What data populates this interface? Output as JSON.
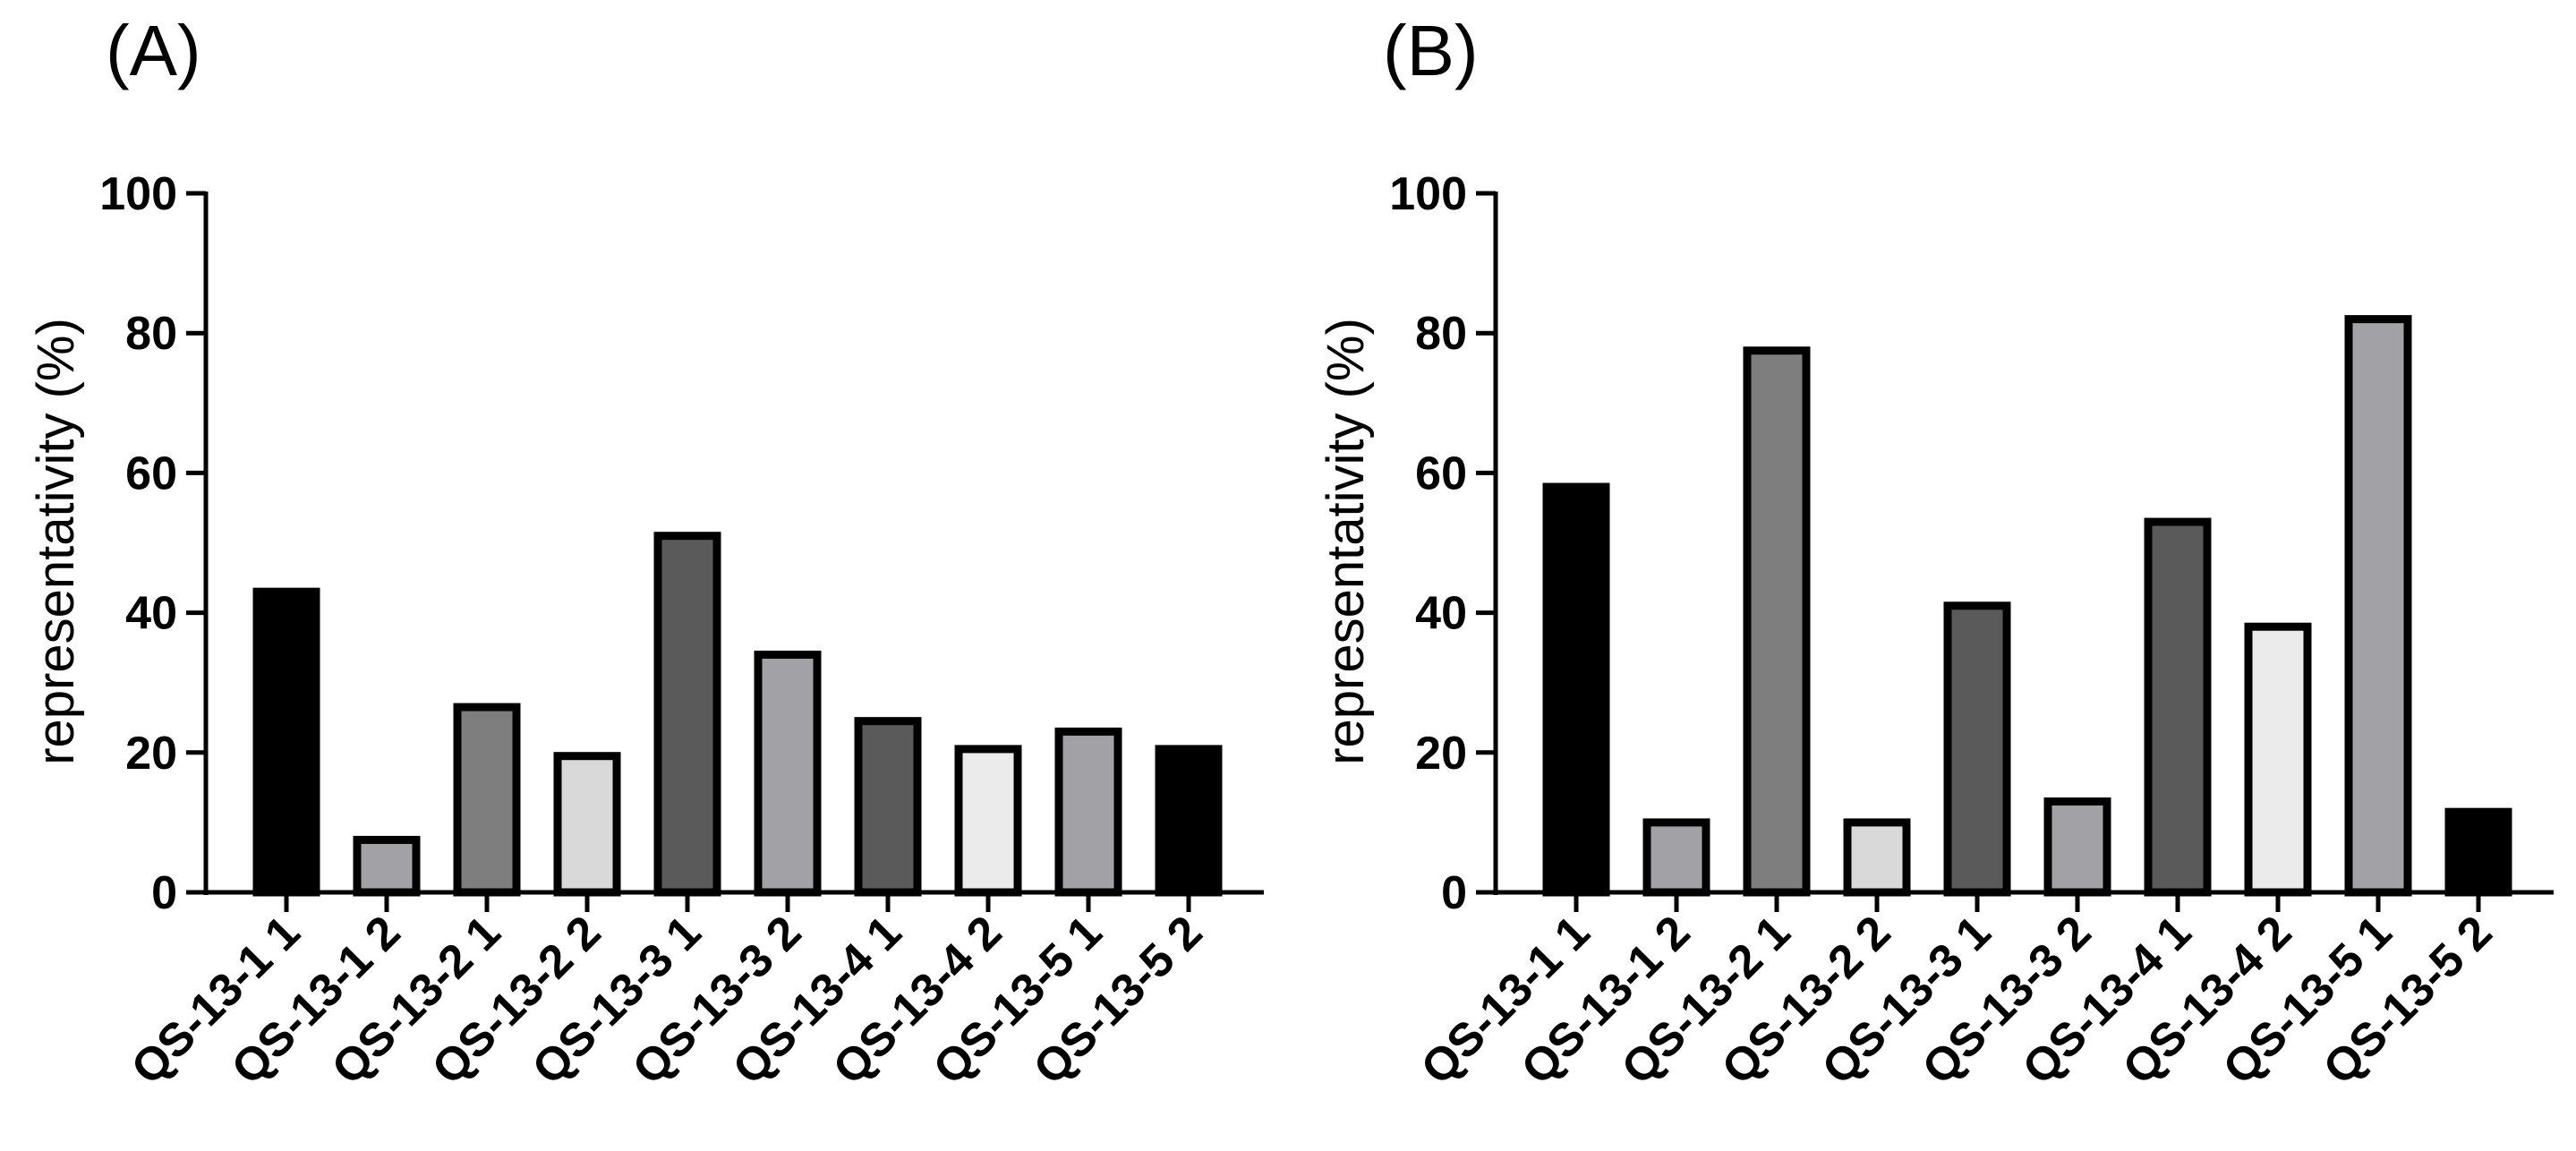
{
  "chart_data": [
    {
      "type": "bar",
      "panel_label": "(A)",
      "title": "",
      "xlabel": "",
      "ylabel": "representativity (%)",
      "ylim": [
        0,
        100
      ],
      "yticks": [
        0,
        20,
        40,
        60,
        80,
        100
      ],
      "grid": false,
      "categories": [
        "QS-13-1 1",
        "QS-13-1 2",
        "QS-13-2 1",
        "QS-13-2 2",
        "QS-13-3 1",
        "QS-13-3 2",
        "QS-13-4 1",
        "QS-13-4 2",
        "QS-13-5 1",
        "QS-13-5 2"
      ],
      "values": [
        43,
        7.5,
        26.5,
        19.5,
        51,
        34,
        24.5,
        20.5,
        23,
        20.5
      ],
      "bar_colors": [
        "#000000",
        "#a2a2a6",
        "#7e7e7e",
        "#d9d9d9",
        "#5a5a5a",
        "#a2a2a6",
        "#5a5a5a",
        "#ebebeb",
        "#a2a2a6",
        "#000000"
      ]
    },
    {
      "type": "bar",
      "panel_label": "(B)",
      "title": "",
      "xlabel": "",
      "ylabel": "representativity (%)",
      "ylim": [
        0,
        100
      ],
      "yticks": [
        0,
        20,
        40,
        60,
        80,
        100
      ],
      "grid": false,
      "categories": [
        "QS-13-1 1",
        "QS-13-1 2",
        "QS-13-2 1",
        "QS-13-2 2",
        "QS-13-3 1",
        "QS-13-3 2",
        "QS-13-4 1",
        "QS-13-4 2",
        "QS-13-5 1",
        "QS-13-5 2"
      ],
      "values": [
        58,
        10,
        77.5,
        10,
        41,
        13,
        53,
        38,
        82,
        11.5
      ],
      "bar_colors": [
        "#000000",
        "#a2a2a6",
        "#7e7e7e",
        "#d9d9d9",
        "#5a5a5a",
        "#a2a2a6",
        "#5a5a5a",
        "#ebebeb",
        "#a2a2a6",
        "#000000"
      ]
    }
  ]
}
